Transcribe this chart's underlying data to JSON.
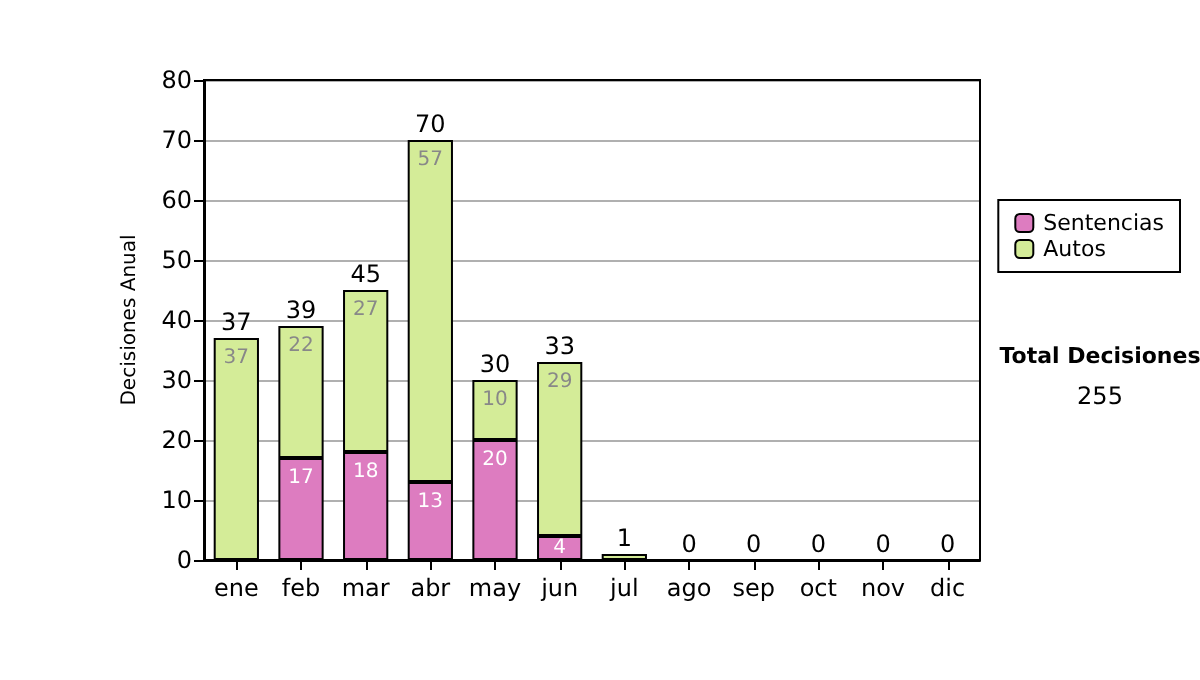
{
  "chart_data": {
    "type": "bar",
    "stacked": true,
    "ylabel": "Decisiones Anual",
    "categories": [
      "ene",
      "feb",
      "mar",
      "abr",
      "may",
      "jun",
      "jul",
      "ago",
      "sep",
      "oct",
      "nov",
      "dic"
    ],
    "series": [
      {
        "name": "Sentencias",
        "color": "#dd7cc0",
        "values": [
          0,
          17,
          18,
          13,
          20,
          4,
          0,
          0,
          0,
          0,
          0,
          0
        ],
        "value_labels": [
          null,
          "17",
          "18",
          "13",
          "20",
          "4",
          null,
          null,
          null,
          null,
          null,
          null
        ]
      },
      {
        "name": "Autos",
        "color": "#d4ec98",
        "values": [
          37,
          22,
          27,
          57,
          10,
          29,
          1,
          0,
          0,
          0,
          0,
          0
        ],
        "value_labels": [
          "37",
          "22",
          "27",
          "57",
          "10",
          "29",
          null,
          null,
          null,
          null,
          null,
          null
        ]
      }
    ],
    "totals": [
      "37",
      "39",
      "45",
      "70",
      "30",
      "33",
      "1",
      "0",
      "0",
      "0",
      "0",
      "0"
    ],
    "ylim": [
      0,
      80
    ],
    "yticks": [
      0,
      10,
      20,
      30,
      40,
      50,
      60,
      70,
      80
    ],
    "grid": "y",
    "legend": "right",
    "annotations": [
      "Total Decisiones",
      "255"
    ]
  }
}
